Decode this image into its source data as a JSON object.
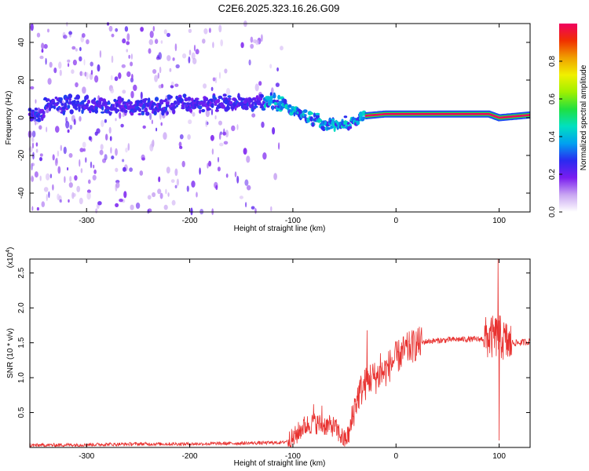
{
  "figure": {
    "title": "C2E6.2025.323.16.26.G09"
  },
  "chart_data": [
    {
      "type": "heatmap",
      "title": "",
      "xlabel": "Height of straight line (km)",
      "ylabel": "Frequency (Hz)",
      "xlim": [
        -355,
        130
      ],
      "ylim": [
        -50,
        50
      ],
      "x_ticks": [
        -300,
        -200,
        -100,
        0,
        100
      ],
      "y_ticks": [
        -40,
        -20,
        0,
        20,
        40
      ],
      "grid": false,
      "colorbar": {
        "label": "Normalized spectral amplitude",
        "range": [
          0,
          1
        ],
        "ticks": [
          "0.0",
          "0.2",
          "0.4",
          "0.6",
          "0.8"
        ],
        "colormap": [
          "#ffffff",
          "#c9a6f2",
          "#7a1df0",
          "#2a2af0",
          "#00a0f0",
          "#00e0c0",
          "#20e040",
          "#a0f000",
          "#f0f000",
          "#f0a000",
          "#f03000",
          "#f00060"
        ]
      },
      "ridge": {
        "description_points": [
          {
            "x": -340,
            "f": 8
          },
          {
            "x": -270,
            "f": 6
          },
          {
            "x": -200,
            "f": 7
          },
          {
            "x": -150,
            "f": 8
          },
          {
            "x": -120,
            "f": 9
          },
          {
            "x": -100,
            "f": 3
          },
          {
            "x": -80,
            "f": -1
          },
          {
            "x": -60,
            "f": -4
          },
          {
            "x": -45,
            "f": -3
          },
          {
            "x": -30,
            "f": 1
          },
          {
            "x": -10,
            "f": 2
          },
          {
            "x": 20,
            "f": 2
          },
          {
            "x": 90,
            "f": 2
          },
          {
            "x": 100,
            "f": 0
          },
          {
            "x": 130,
            "f": 1.5
          }
        ],
        "high_amplitude_start_x": -30
      }
    },
    {
      "type": "line",
      "title": "",
      "xlabel": "Height of straight line (km)",
      "ylabel": "SNR (10 * v/v)",
      "y_scale_label": "(x10",
      "y_scale_exp": "4",
      "y_scale_close": ")",
      "xlim": [
        -355,
        130
      ],
      "ylim": [
        0,
        2.7
      ],
      "x_ticks": [
        -300,
        -200,
        -100,
        0,
        100
      ],
      "y_ticks": [
        "0.5",
        "1.0",
        "1.5",
        "2.0",
        "2.5"
      ],
      "series_color": "#e8312f",
      "series": [
        {
          "name": "",
          "x": [
            -355,
            -300,
            -250,
            -200,
            -150,
            -110,
            -100,
            -90,
            -80,
            -70,
            -60,
            -50,
            -45,
            -40,
            -35,
            -30,
            -25,
            -20,
            -15,
            -10,
            -5,
            0,
            10,
            20,
            30,
            40,
            60,
            80,
            90,
            95,
            100,
            105,
            110,
            120,
            130
          ],
          "y": [
            0.03,
            0.04,
            0.05,
            0.05,
            0.06,
            0.07,
            0.12,
            0.3,
            0.35,
            0.32,
            0.3,
            0.1,
            0.2,
            0.6,
            0.8,
            0.9,
            1.0,
            1.0,
            1.05,
            1.1,
            1.2,
            1.28,
            1.4,
            1.48,
            1.52,
            1.53,
            1.55,
            1.55,
            1.57,
            1.58,
            1.6,
            1.52,
            1.5,
            1.5,
            1.52
          ]
        }
      ],
      "spikes": [
        {
          "x": -80,
          "y": 0.62
        },
        {
          "x": -72,
          "y": 0.6
        },
        {
          "x": -28,
          "y": 1.68
        },
        {
          "x": -15,
          "y": 1.35
        },
        {
          "x": 99,
          "y": 2.7
        },
        {
          "x": 100,
          "y": 0.1
        },
        {
          "x": 110,
          "y": 1.3
        }
      ]
    }
  ]
}
